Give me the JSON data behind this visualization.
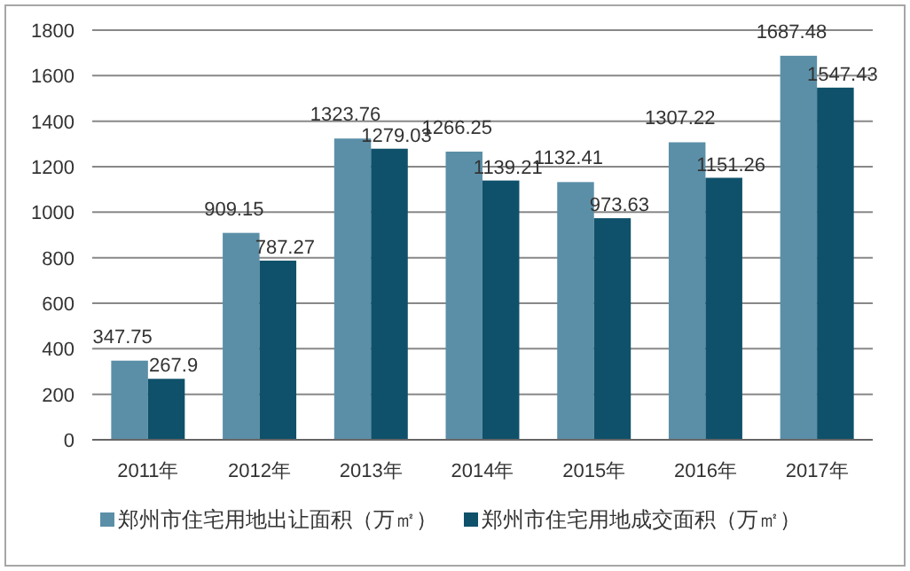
{
  "chart_data": {
    "type": "bar",
    "categories": [
      "2011年",
      "2012年",
      "2013年",
      "2014年",
      "2015年",
      "2016年",
      "2017年"
    ],
    "series": [
      {
        "name": "郑州市住宅用地出让面积（万㎡）",
        "color": "#5b8fa8",
        "values": [
          347.75,
          909.15,
          1323.76,
          1266.25,
          1132.41,
          1307.22,
          1687.48
        ]
      },
      {
        "name": "郑州市住宅用地成交面积（万㎡）",
        "color": "#0f516b",
        "values": [
          267.9,
          787.27,
          1279.03,
          1139.21,
          973.63,
          1151.26,
          1547.43
        ]
      }
    ],
    "ylim": [
      0,
      1800
    ],
    "yticks": [
      0,
      200,
      400,
      600,
      800,
      1000,
      1200,
      1400,
      1600,
      1800
    ],
    "grid": "y",
    "legend": "bottom",
    "data_labels": true
  }
}
